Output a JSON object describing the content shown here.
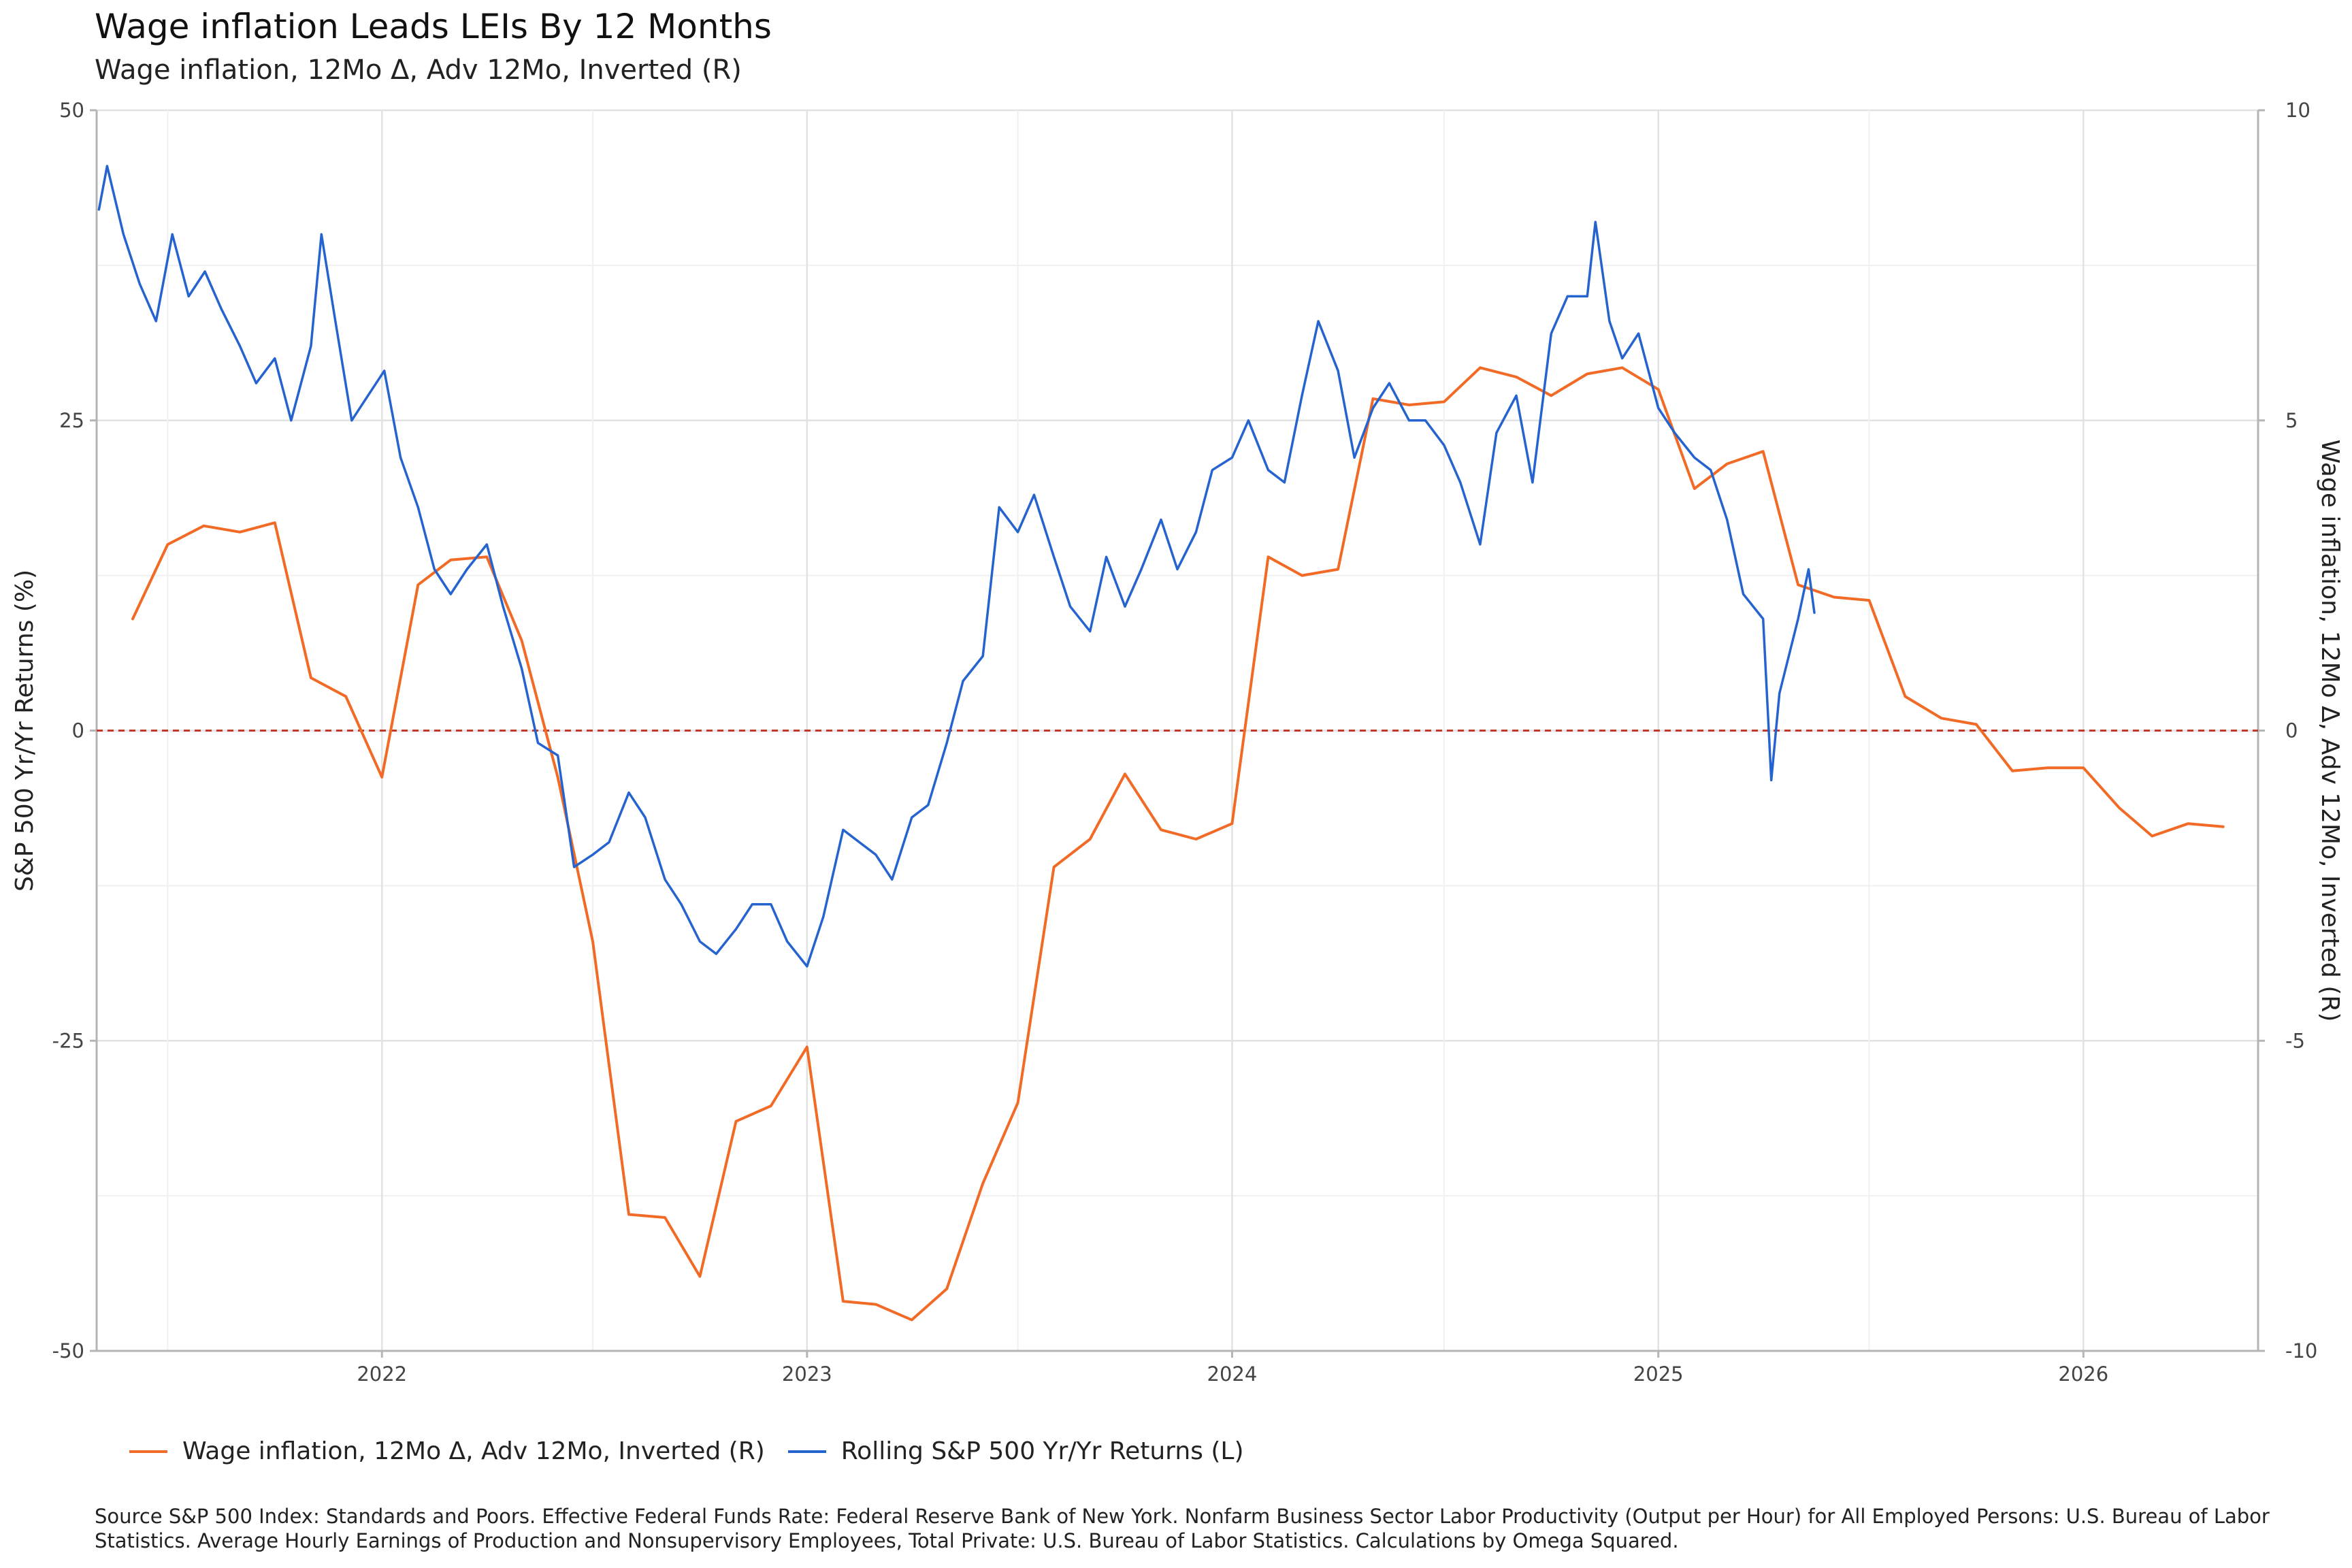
{
  "title": "Wage inflation  Leads LEIs By  12  Months",
  "subtitle": "Wage inflation, 12Mo Δ, Adv 12Mo, Inverted (R)",
  "source": "Source S&P 500 Index: Standards and Poors. Effective Federal Funds Rate: Federal Reserve Bank of New York. Nonfarm Business Sector Labor Productivity (Output per Hour) for All Employed Persons: U.S. Bureau of Labor Statistics. Average Hourly Earnings of Production and Nonsupervisory Employees, Total Private: U.S. Bureau of Labor Statistics. Calculations by Omega Squared.",
  "legend": {
    "wage": "Wage inflation, 12Mo Δ, Adv 12Mo, Inverted (R)",
    "sp": "Rolling S&P 500 Yr/Yr Returns (L)"
  },
  "chart_data": {
    "type": "line",
    "ylabel_left": "S&P 500 Yr/Yr Returns (%)",
    "ylabel_right": "Wage inflation, 12Mo Δ, Adv 12Mo, Inverted (R)",
    "xlim": [
      "2021-05-01",
      "2026-05-31"
    ],
    "ylim_left": [
      -50,
      50
    ],
    "ylim_right": [
      -10,
      10
    ],
    "x_ticks": [
      "2022",
      "2023",
      "2024",
      "2025",
      "2026"
    ],
    "y_ticks_left": [
      "50",
      "25",
      "0",
      "-25",
      "-50"
    ],
    "y_ticks_right": [
      "10",
      "5",
      "0",
      "-5",
      "-10"
    ],
    "zero_line": {
      "value": 0,
      "style": "dashed",
      "color": "#c0392b"
    },
    "grid": true,
    "colors": {
      "wage": "#f26b26",
      "sp": "#2563cf"
    },
    "series": [
      {
        "name": "Wage inflation, 12Mo Δ, Adv 12Mo, Inverted (R)",
        "axis": "right",
        "color": "#f26b26",
        "points": [
          [
            "2021-06-01",
            1.8
          ],
          [
            "2021-07-01",
            3.0
          ],
          [
            "2021-08-01",
            3.3
          ],
          [
            "2021-09-01",
            3.2
          ],
          [
            "2021-10-01",
            3.35
          ],
          [
            "2021-11-01",
            0.85
          ],
          [
            "2021-12-01",
            0.55
          ],
          [
            "2022-01-01",
            -0.75
          ],
          [
            "2022-02-01",
            2.35
          ],
          [
            "2022-03-01",
            2.75
          ],
          [
            "2022-04-01",
            2.8
          ],
          [
            "2022-05-01",
            1.45
          ],
          [
            "2022-06-01",
            -0.75
          ],
          [
            "2022-07-01",
            -3.4
          ],
          [
            "2022-08-01",
            -7.8
          ],
          [
            "2022-09-01",
            -7.85
          ],
          [
            "2022-10-01",
            -8.8
          ],
          [
            "2022-11-01",
            -6.3
          ],
          [
            "2022-12-01",
            -6.05
          ],
          [
            "2023-01-01",
            -5.1
          ],
          [
            "2023-02-01",
            -9.2
          ],
          [
            "2023-03-01",
            -9.25
          ],
          [
            "2023-04-01",
            -9.5
          ],
          [
            "2023-05-01",
            -9.0
          ],
          [
            "2023-06-01",
            -7.3
          ],
          [
            "2023-07-01",
            -6.0
          ],
          [
            "2023-08-01",
            -2.2
          ],
          [
            "2023-09-01",
            -1.75
          ],
          [
            "2023-10-01",
            -0.7
          ],
          [
            "2023-11-01",
            -1.6
          ],
          [
            "2023-12-01",
            -1.75
          ],
          [
            "2024-01-01",
            -1.5
          ],
          [
            "2024-02-01",
            2.8
          ],
          [
            "2024-03-01",
            2.5
          ],
          [
            "2024-04-01",
            2.6
          ],
          [
            "2024-05-01",
            5.35
          ],
          [
            "2024-06-01",
            5.25
          ],
          [
            "2024-07-01",
            5.3
          ],
          [
            "2024-08-01",
            5.85
          ],
          [
            "2024-09-01",
            5.7
          ],
          [
            "2024-10-01",
            5.4
          ],
          [
            "2024-11-01",
            5.75
          ],
          [
            "2024-12-01",
            5.85
          ],
          [
            "2025-01-01",
            5.5
          ],
          [
            "2025-02-01",
            3.9
          ],
          [
            "2025-03-01",
            4.3
          ],
          [
            "2025-04-01",
            4.5
          ],
          [
            "2025-05-01",
            2.35
          ],
          [
            "2025-06-01",
            2.15
          ],
          [
            "2025-07-01",
            2.1
          ],
          [
            "2025-08-01",
            0.55
          ],
          [
            "2025-09-01",
            0.2
          ],
          [
            "2025-10-01",
            0.1
          ],
          [
            "2025-11-01",
            -0.65
          ],
          [
            "2025-12-01",
            -0.6
          ],
          [
            "2026-01-01",
            -0.6
          ],
          [
            "2026-02-01",
            -1.25
          ],
          [
            "2026-03-01",
            -1.7
          ],
          [
            "2026-04-01",
            -1.5
          ],
          [
            "2026-05-01",
            -1.55
          ]
        ]
      },
      {
        "name": "Rolling S&P 500 Yr/Yr Returns (L)",
        "axis": "left",
        "color": "#2563cf",
        "points": [
          [
            "2021-05-03",
            42
          ],
          [
            "2021-05-10",
            45.5
          ],
          [
            "2021-05-24",
            40
          ],
          [
            "2021-06-07",
            36
          ],
          [
            "2021-06-21",
            33
          ],
          [
            "2021-07-05",
            40
          ],
          [
            "2021-07-19",
            35
          ],
          [
            "2021-08-02",
            37
          ],
          [
            "2021-08-16",
            34
          ],
          [
            "2021-09-01",
            31
          ],
          [
            "2021-09-15",
            28
          ],
          [
            "2021-10-01",
            30
          ],
          [
            "2021-10-15",
            25
          ],
          [
            "2021-11-01",
            31
          ],
          [
            "2021-11-10",
            40
          ],
          [
            "2021-11-22",
            33
          ],
          [
            "2021-12-06",
            25
          ],
          [
            "2021-12-20",
            27
          ],
          [
            "2022-01-03",
            29
          ],
          [
            "2022-01-17",
            22
          ],
          [
            "2022-02-01",
            18
          ],
          [
            "2022-02-15",
            13
          ],
          [
            "2022-03-01",
            11
          ],
          [
            "2022-03-15",
            13
          ],
          [
            "2022-04-01",
            15
          ],
          [
            "2022-04-15",
            10
          ],
          [
            "2022-05-01",
            5
          ],
          [
            "2022-05-15",
            -1
          ],
          [
            "2022-06-01",
            -2
          ],
          [
            "2022-06-15",
            -11
          ],
          [
            "2022-07-01",
            -10
          ],
          [
            "2022-07-15",
            -9
          ],
          [
            "2022-08-01",
            -5
          ],
          [
            "2022-08-15",
            -7
          ],
          [
            "2022-09-01",
            -12
          ],
          [
            "2022-09-15",
            -14
          ],
          [
            "2022-10-01",
            -17
          ],
          [
            "2022-10-15",
            -18
          ],
          [
            "2022-11-01",
            -16
          ],
          [
            "2022-11-15",
            -14
          ],
          [
            "2022-12-01",
            -14
          ],
          [
            "2022-12-15",
            -17
          ],
          [
            "2023-01-01",
            -19
          ],
          [
            "2023-01-15",
            -15
          ],
          [
            "2023-02-01",
            -8
          ],
          [
            "2023-02-15",
            -9
          ],
          [
            "2023-03-01",
            -10
          ],
          [
            "2023-03-15",
            -12
          ],
          [
            "2023-04-01",
            -7
          ],
          [
            "2023-04-15",
            -6
          ],
          [
            "2023-05-01",
            -1
          ],
          [
            "2023-05-15",
            4
          ],
          [
            "2023-06-01",
            6
          ],
          [
            "2023-06-15",
            18
          ],
          [
            "2023-07-01",
            16
          ],
          [
            "2023-07-15",
            19
          ],
          [
            "2023-08-01",
            14
          ],
          [
            "2023-08-15",
            10
          ],
          [
            "2023-09-01",
            8
          ],
          [
            "2023-09-15",
            14
          ],
          [
            "2023-10-01",
            10
          ],
          [
            "2023-10-15",
            13
          ],
          [
            "2023-11-01",
            17
          ],
          [
            "2023-11-15",
            13
          ],
          [
            "2023-12-01",
            16
          ],
          [
            "2023-12-15",
            21
          ],
          [
            "2024-01-01",
            22
          ],
          [
            "2024-01-15",
            25
          ],
          [
            "2024-02-01",
            21
          ],
          [
            "2024-02-15",
            20
          ],
          [
            "2024-03-01",
            27
          ],
          [
            "2024-03-15",
            33
          ],
          [
            "2024-04-01",
            29
          ],
          [
            "2024-04-15",
            22
          ],
          [
            "2024-05-01",
            26
          ],
          [
            "2024-05-15",
            28
          ],
          [
            "2024-06-01",
            25
          ],
          [
            "2024-06-15",
            25
          ],
          [
            "2024-07-01",
            23
          ],
          [
            "2024-07-15",
            20
          ],
          [
            "2024-08-01",
            15
          ],
          [
            "2024-08-15",
            24
          ],
          [
            "2024-09-01",
            27
          ],
          [
            "2024-09-15",
            20
          ],
          [
            "2024-10-01",
            32
          ],
          [
            "2024-10-15",
            35
          ],
          [
            "2024-11-01",
            35
          ],
          [
            "2024-11-08",
            41
          ],
          [
            "2024-11-20",
            33
          ],
          [
            "2024-12-01",
            30
          ],
          [
            "2024-12-15",
            32
          ],
          [
            "2025-01-01",
            26
          ],
          [
            "2025-01-15",
            24
          ],
          [
            "2025-02-01",
            22
          ],
          [
            "2025-02-15",
            21
          ],
          [
            "2025-03-01",
            17
          ],
          [
            "2025-03-15",
            11
          ],
          [
            "2025-04-01",
            9
          ],
          [
            "2025-04-08",
            -4
          ],
          [
            "2025-04-15",
            3
          ],
          [
            "2025-05-01",
            9
          ],
          [
            "2025-05-10",
            13
          ],
          [
            "2025-05-15",
            9.5
          ]
        ]
      }
    ]
  }
}
